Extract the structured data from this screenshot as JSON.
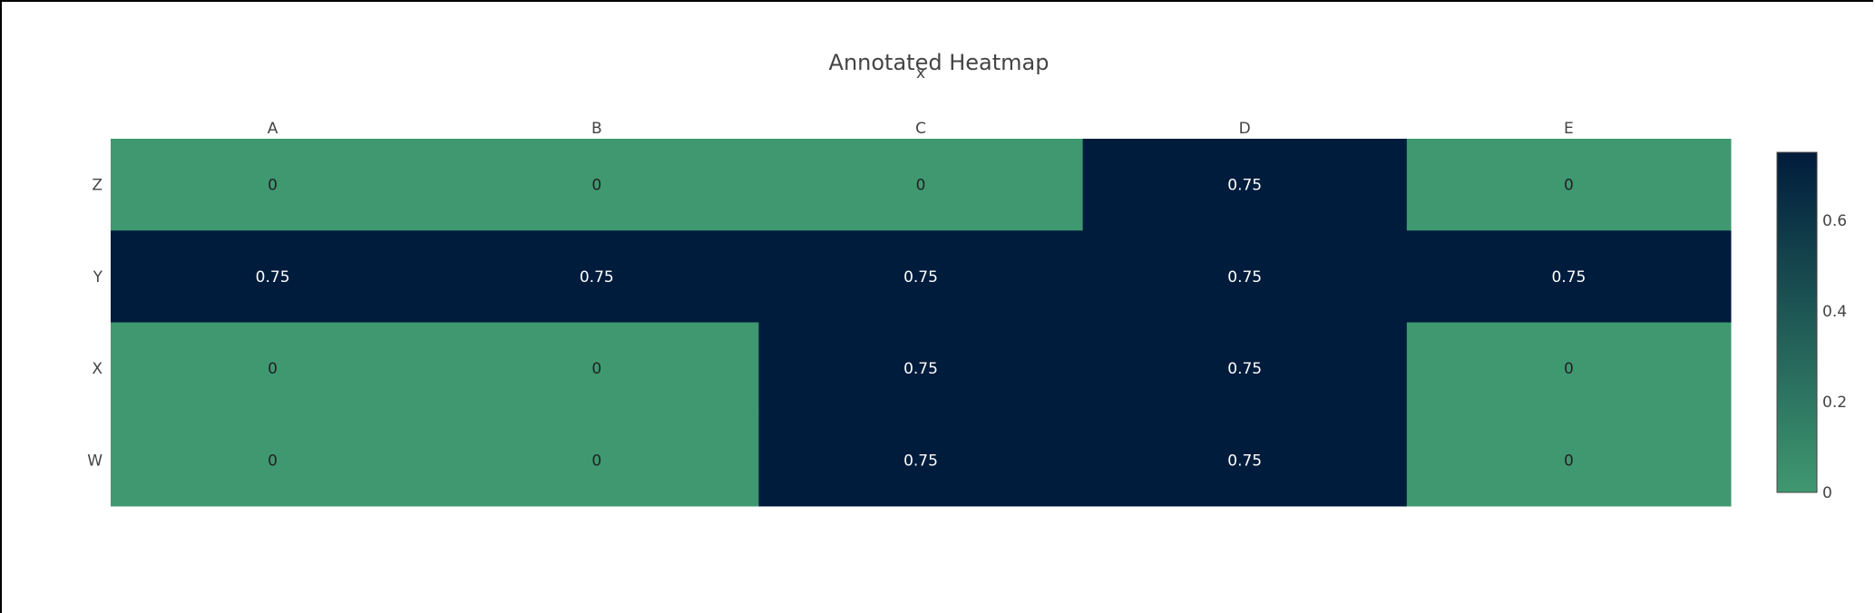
{
  "chart_data": {
    "type": "heatmap",
    "title": "Annotated Heatmap",
    "xlabel": "x",
    "ylabel": "",
    "x": [
      "A",
      "B",
      "C",
      "D",
      "E"
    ],
    "y": [
      "Z",
      "Y",
      "X",
      "W"
    ],
    "z": [
      [
        0,
        0,
        0,
        0.75,
        0
      ],
      [
        0.75,
        0.75,
        0.75,
        0.75,
        0.75
      ],
      [
        0,
        0,
        0.75,
        0.75,
        0
      ],
      [
        0,
        0,
        0.75,
        0.75,
        0
      ]
    ],
    "annotations": [
      [
        "0",
        "0",
        "0",
        "0.75",
        "0"
      ],
      [
        "0.75",
        "0.75",
        "0.75",
        "0.75",
        "0.75"
      ],
      [
        "0",
        "0",
        "0.75",
        "0.75",
        "0"
      ],
      [
        "0",
        "0",
        "0.75",
        "0.75",
        "0"
      ]
    ],
    "zrange": [
      0,
      0.75
    ],
    "colorscale": [
      "#3f9870",
      "#001c3c"
    ],
    "colorbar": {
      "ticks": [
        "0",
        "0.2",
        "0.4",
        "0.6"
      ],
      "tickvals": [
        0,
        0.2,
        0.4,
        0.6
      ]
    },
    "text_colors": {
      "low": "#222222",
      "high": "#ffffff"
    },
    "x_axis_position": "top"
  }
}
